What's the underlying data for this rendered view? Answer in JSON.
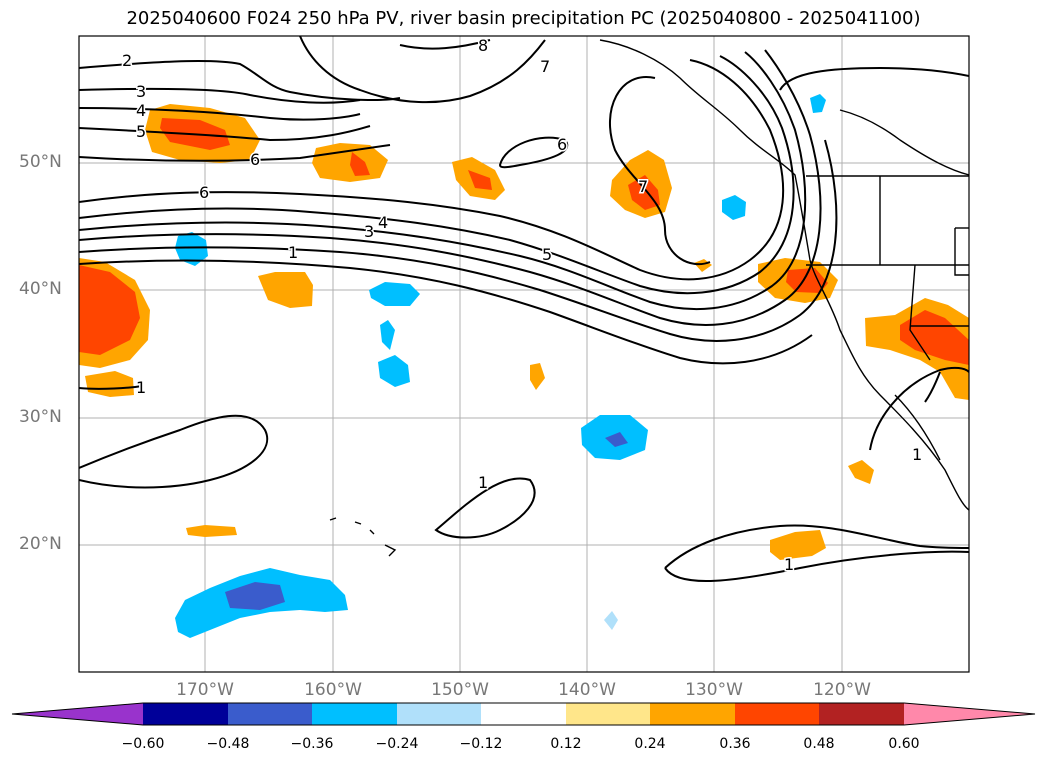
{
  "title": "2025040600 F024 250 hPa PV, river basin precipitation PC (2025040800 - 2025041100)",
  "latitude_labels": [
    "50°N",
    "40°N",
    "30°N",
    "20°N"
  ],
  "longitude_labels": [
    "170°W",
    "160°W",
    "150°W",
    "140°W",
    "130°W",
    "120°W"
  ],
  "contour_labels": [
    "2",
    "3",
    "4",
    "5",
    "6",
    "6",
    "6",
    "7",
    "7",
    "8",
    "5",
    "4",
    "3",
    "1",
    "1",
    "1",
    "1",
    "1"
  ],
  "colorbar": {
    "ticks": [
      "−0.60",
      "−0.48",
      "−0.36",
      "−0.24",
      "−0.12",
      "0.12",
      "0.24",
      "0.36",
      "0.48",
      "0.60"
    ],
    "colors": [
      "#9933cc",
      "#000099",
      "#3a5ccc",
      "#00bfff",
      "#b0e0fa",
      "#ffffff",
      "#ffe68a",
      "#ffa500",
      "#ff4500",
      "#b22222",
      "#ff88aa"
    ]
  },
  "colors": {
    "pos_light": "#ffe68a",
    "pos_mid": "#ffa500",
    "pos_strong": "#ff4500",
    "neg_light": "#b0e0fa",
    "neg_mid": "#00bfff",
    "neg_strong": "#3a5ccc"
  }
}
